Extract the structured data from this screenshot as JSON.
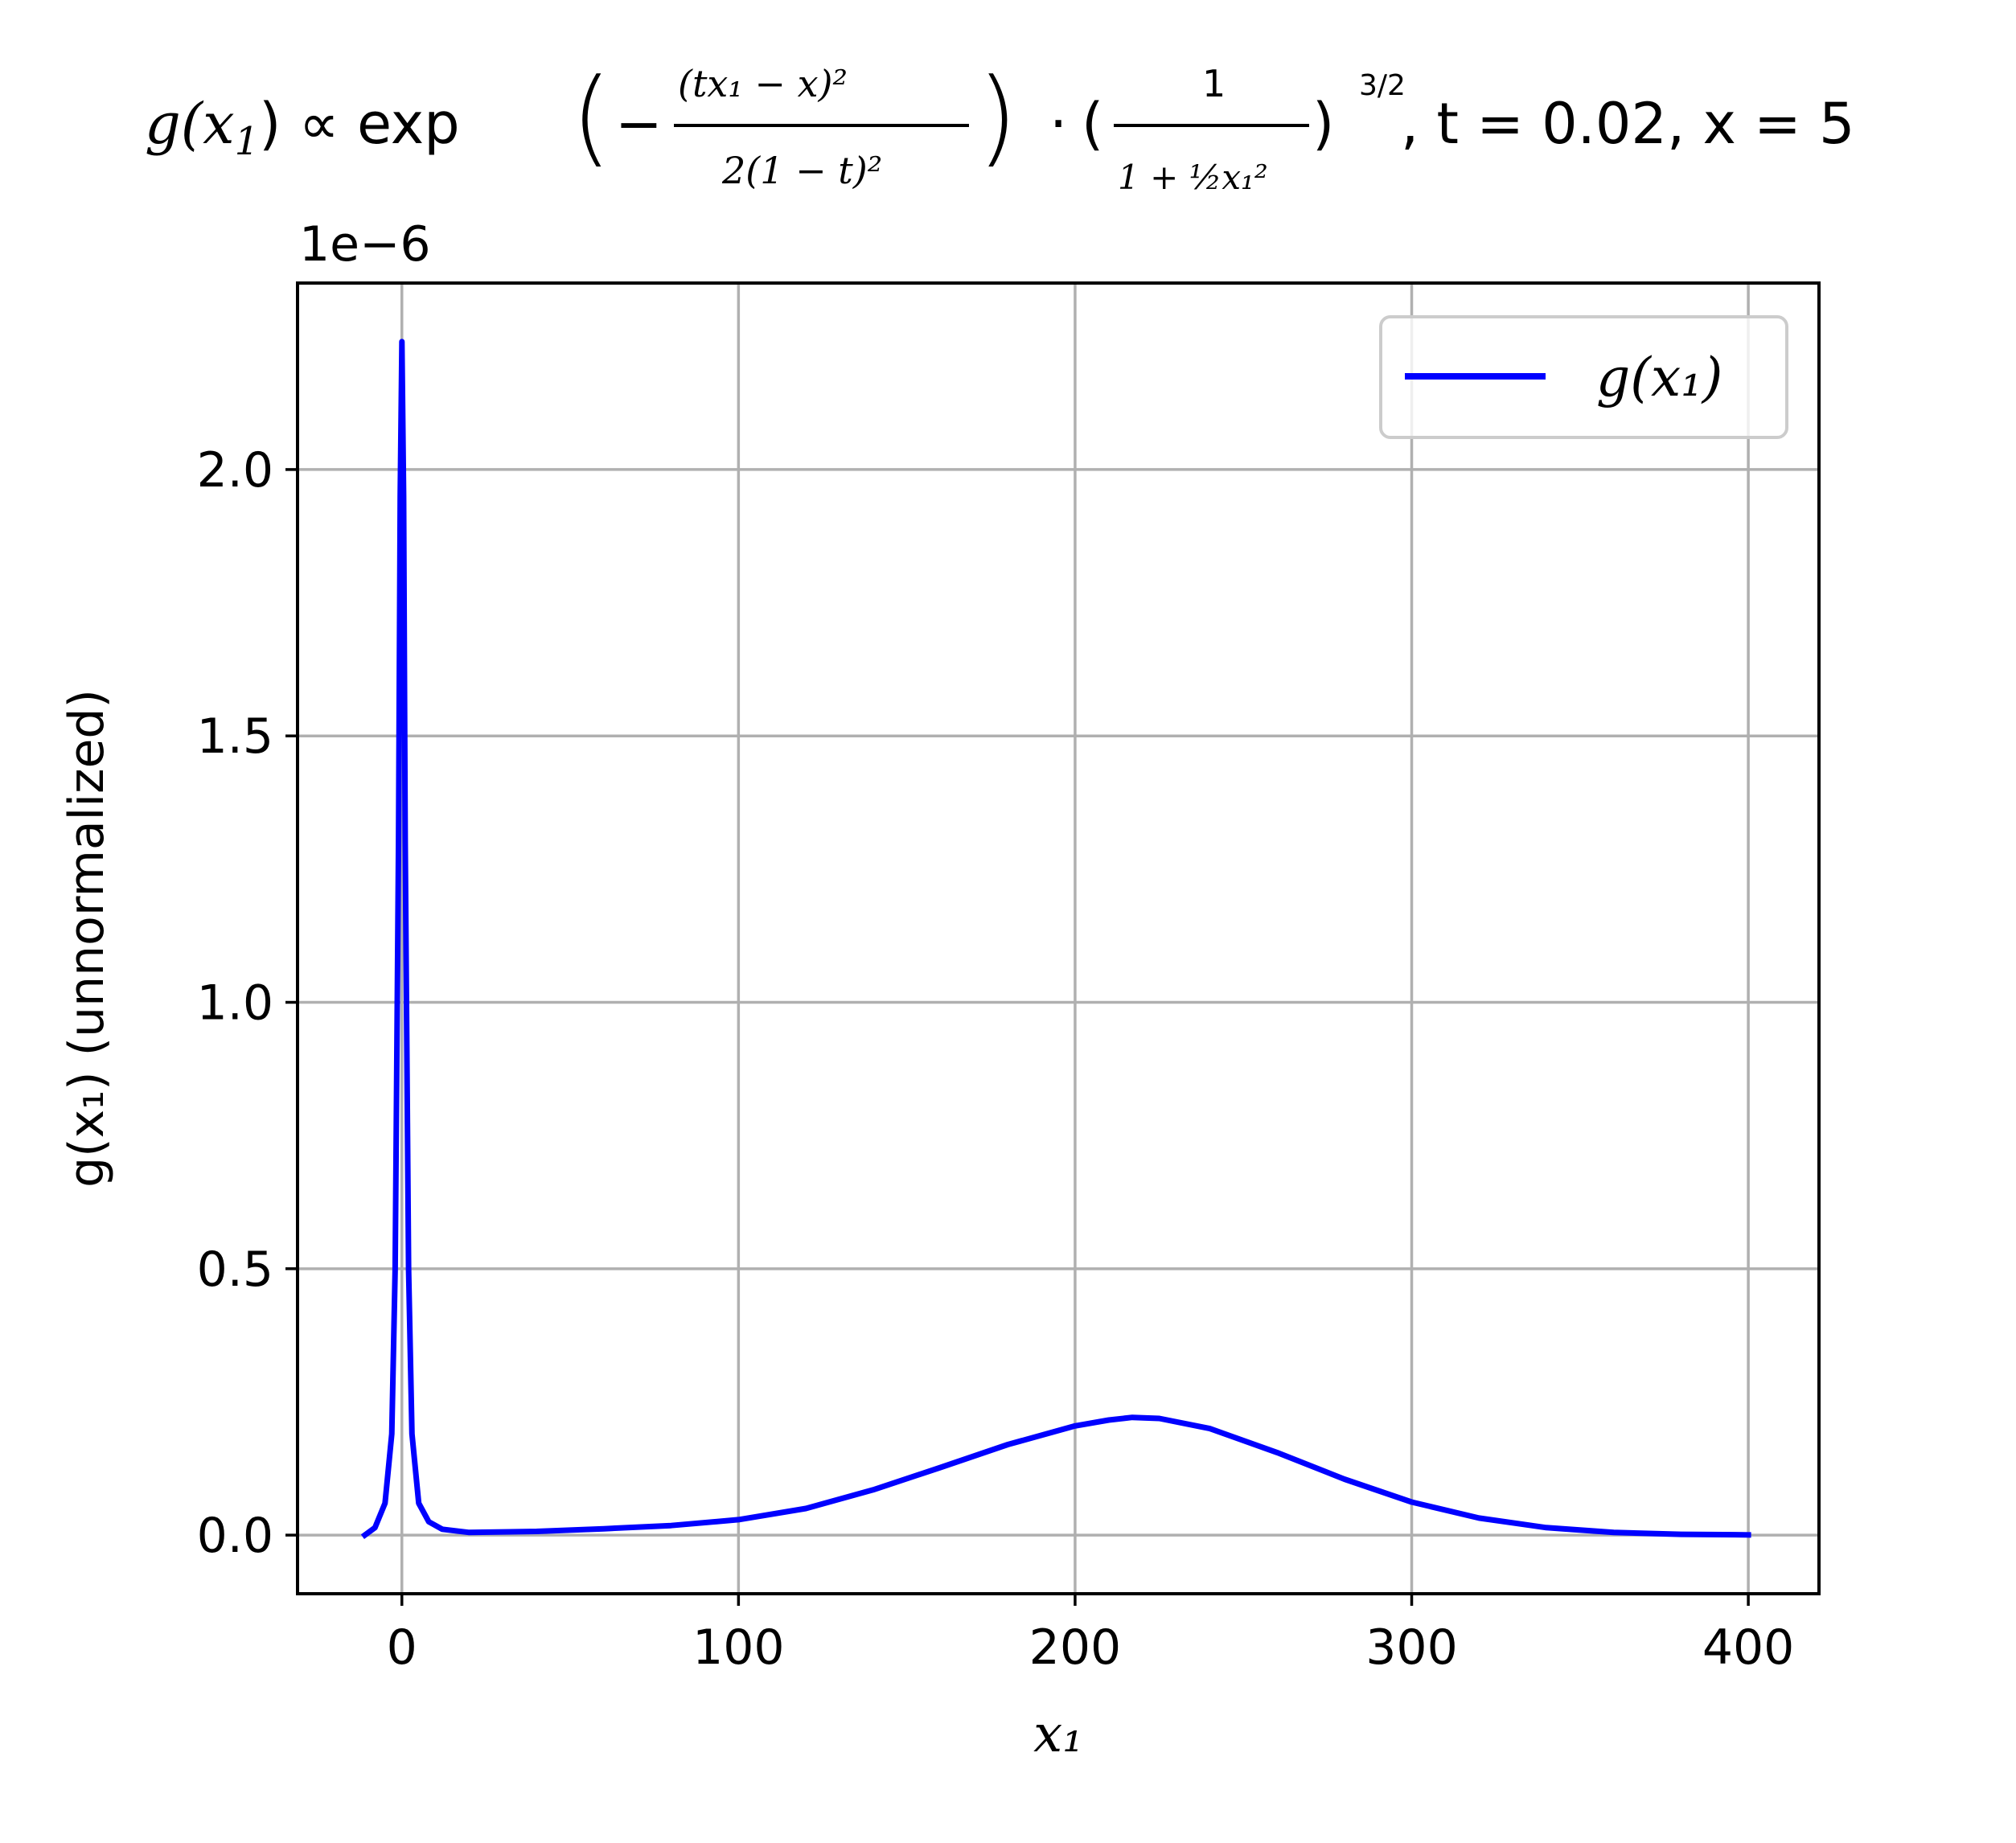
{
  "chart_data": {
    "type": "line",
    "title": {
      "prefix": "g(x",
      "sub1": "1",
      "mid": ") ∝ exp",
      "num": "(tx₁ − x)²",
      "den": "2(1 − t)²",
      "rhs_num": "1",
      "rhs_den": "1 + ½x₁²",
      "exp_frac": "3/2",
      "params": ", t = 0.02, x = 5"
    },
    "offset_text": "1e−6",
    "xlabel": "x₁",
    "ylabel": "g(x₁) (unnormalized)",
    "xlim": [
      -31,
      421
    ],
    "ylim": [
      -0.11,
      2.35
    ],
    "y_scale_factor": 1e-06,
    "xticks": [
      0,
      100,
      200,
      300,
      400
    ],
    "xtick_labels": [
      "0",
      "100",
      "200",
      "300",
      "400"
    ],
    "yticks": [
      0.0,
      0.5,
      1.0,
      1.5,
      2.0
    ],
    "ytick_labels": [
      "0.0",
      "0.5",
      "1.0",
      "1.5",
      "2.0"
    ],
    "grid": true,
    "legend_position": "top-right",
    "series": [
      {
        "name": "g(x₁)",
        "color": "#0000ff",
        "x": [
          -11,
          -8,
          -5,
          -3,
          -2,
          -1,
          -0.5,
          0,
          0.5,
          1,
          2,
          3,
          5,
          8,
          12,
          20,
          40,
          60,
          80,
          100,
          120,
          140,
          160,
          180,
          200,
          210,
          217,
          225,
          240,
          260,
          280,
          300,
          320,
          340,
          360,
          380,
          400
        ],
        "y": [
          0.0,
          0.014,
          0.06,
          0.19,
          0.5,
          1.3,
          1.95,
          2.24,
          1.95,
          1.3,
          0.5,
          0.19,
          0.06,
          0.025,
          0.011,
          0.005,
          0.007,
          0.012,
          0.018,
          0.029,
          0.05,
          0.085,
          0.127,
          0.17,
          0.205,
          0.216,
          0.221,
          0.219,
          0.2,
          0.155,
          0.105,
          0.062,
          0.032,
          0.014,
          0.005,
          0.0015,
          0.0004
        ]
      }
    ]
  }
}
